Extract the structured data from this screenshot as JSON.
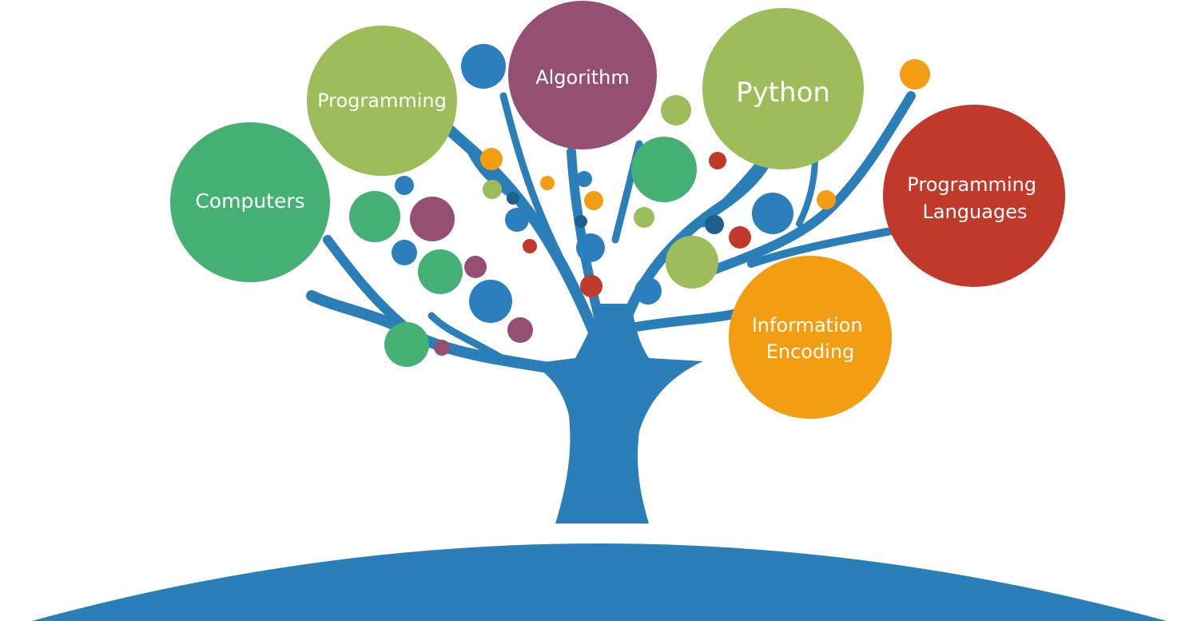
{
  "colors": {
    "trunk": "#2a7fb8",
    "ground": "#2a7fb8",
    "green": "#44b074",
    "lime": "#9cbd5a",
    "plum": "#944f73",
    "red": "#c0392b",
    "orange": "#f29d12",
    "blue": "#2b7fbc",
    "darkblue": "#1f5f8b",
    "label": "#ffffff"
  },
  "topics": [
    {
      "id": "computers",
      "label_lines": [
        "Computers"
      ],
      "color": "green"
    },
    {
      "id": "programming",
      "label_lines": [
        "Programming"
      ],
      "color": "lime"
    },
    {
      "id": "algorithm",
      "label_lines": [
        "Algorithm"
      ],
      "color": "plum"
    },
    {
      "id": "python",
      "label_lines": [
        "Python"
      ],
      "color": "lime"
    },
    {
      "id": "programming-languages",
      "label_lines": [
        "Programming",
        "Languages"
      ],
      "color": "red"
    },
    {
      "id": "information-encoding",
      "label_lines": [
        "Information",
        "Encoding"
      ],
      "color": "orange"
    }
  ]
}
